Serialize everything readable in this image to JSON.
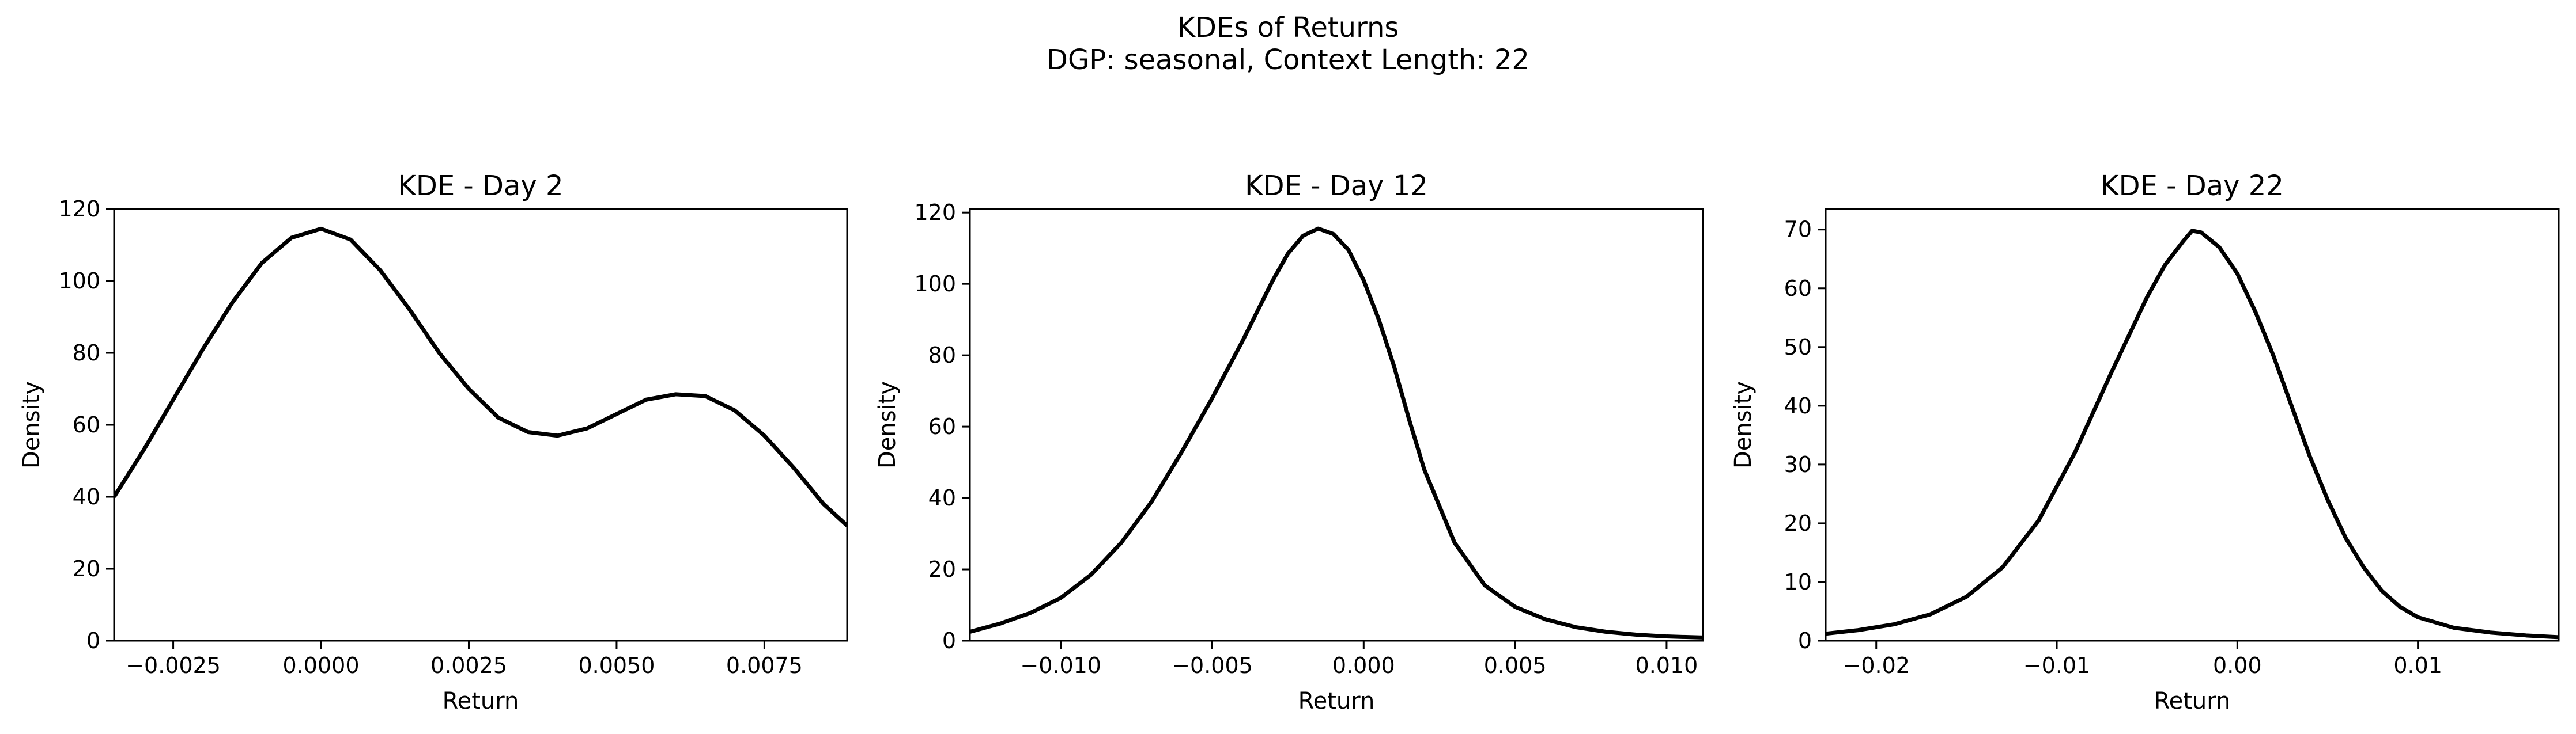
{
  "figure": {
    "title_line1": "KDEs of Returns",
    "title_line2": "DGP: seasonal, Context Length: 22"
  },
  "chart_data": [
    {
      "type": "line",
      "title": "KDE - Day 2",
      "xlabel": "Return",
      "ylabel": "Density",
      "xlim": [
        -0.0035,
        0.0089
      ],
      "ylim": [
        0,
        120
      ],
      "xticks": [
        -0.0025,
        0.0,
        0.0025,
        0.005,
        0.0075
      ],
      "xtick_labels": [
        "−0.0025",
        "0.0000",
        "0.0025",
        "0.0050",
        "0.0075"
      ],
      "yticks": [
        0,
        20,
        40,
        60,
        80,
        100,
        120
      ],
      "ytick_labels": [
        "0",
        "20",
        "40",
        "60",
        "80",
        "100",
        "120"
      ],
      "grid": false,
      "color": "#000000",
      "series": [
        {
          "x": [
            -0.0035,
            -0.003,
            -0.0025,
            -0.002,
            -0.0015,
            -0.001,
            -0.0005,
            0.0,
            0.0005,
            0.001,
            0.0015,
            0.002,
            0.0025,
            0.003,
            0.0035,
            0.004,
            0.0045,
            0.005,
            0.0055,
            0.006,
            0.0065,
            0.007,
            0.0075,
            0.008,
            0.0085,
            0.0089
          ],
          "y": [
            40,
            53,
            67,
            81,
            94,
            105,
            112,
            114.5,
            111.5,
            103,
            92,
            80,
            70,
            62,
            58,
            57,
            59,
            63,
            67,
            68.5,
            68,
            64,
            57,
            48,
            38,
            32
          ]
        }
      ]
    },
    {
      "type": "line",
      "title": "KDE - Day 12",
      "xlabel": "Return",
      "ylabel": "Density",
      "xlim": [
        -0.013,
        0.0112
      ],
      "ylim": [
        0,
        121
      ],
      "xticks": [
        -0.01,
        -0.005,
        0.0,
        0.005,
        0.01
      ],
      "xtick_labels": [
        "−0.010",
        "−0.005",
        "0.000",
        "0.005",
        "0.010"
      ],
      "yticks": [
        0,
        20,
        40,
        60,
        80,
        100,
        120
      ],
      "ytick_labels": [
        "0",
        "20",
        "40",
        "60",
        "80",
        "100",
        "120"
      ],
      "grid": false,
      "color": "#000000",
      "series": [
        {
          "x": [
            -0.013,
            -0.012,
            -0.011,
            -0.01,
            -0.009,
            -0.008,
            -0.007,
            -0.006,
            -0.005,
            -0.004,
            -0.003,
            -0.0025,
            -0.002,
            -0.0015,
            -0.001,
            -0.0005,
            0.0,
            0.0005,
            0.001,
            0.0015,
            0.002,
            0.003,
            0.004,
            0.005,
            0.006,
            0.007,
            0.008,
            0.009,
            0.01,
            0.0112
          ],
          "y": [
            2.5,
            4.8,
            7.8,
            12,
            18.5,
            27.5,
            39,
            53,
            68,
            84,
            101,
            108.5,
            113.5,
            115.5,
            114,
            109.5,
            101,
            90,
            77,
            62,
            48,
            27.5,
            15.5,
            9.5,
            6,
            3.8,
            2.5,
            1.7,
            1.2,
            0.9
          ]
        }
      ]
    },
    {
      "type": "line",
      "title": "KDE - Day 22",
      "xlabel": "Return",
      "ylabel": "Density",
      "xlim": [
        -0.0228,
        0.0178
      ],
      "ylim": [
        0,
        73.5
      ],
      "xticks": [
        -0.02,
        -0.01,
        0.0,
        0.01
      ],
      "xtick_labels": [
        "−0.02",
        "−0.01",
        "0.00",
        "0.01"
      ],
      "yticks": [
        0,
        10,
        20,
        30,
        40,
        50,
        60,
        70
      ],
      "ytick_labels": [
        "0",
        "10",
        "20",
        "30",
        "40",
        "50",
        "60",
        "70"
      ],
      "grid": false,
      "color": "#000000",
      "series": [
        {
          "x": [
            -0.0228,
            -0.021,
            -0.019,
            -0.017,
            -0.015,
            -0.013,
            -0.011,
            -0.009,
            -0.007,
            -0.005,
            -0.004,
            -0.003,
            -0.0025,
            -0.002,
            -0.001,
            0.0,
            0.001,
            0.002,
            0.003,
            0.004,
            0.005,
            0.006,
            0.007,
            0.008,
            0.009,
            0.01,
            0.012,
            0.014,
            0.016,
            0.0178
          ],
          "y": [
            1.2,
            1.8,
            2.8,
            4.5,
            7.5,
            12.5,
            20.5,
            32,
            45.5,
            58.5,
            64,
            68,
            69.8,
            69.5,
            67,
            62.5,
            56,
            48.5,
            40,
            31.5,
            24,
            17.5,
            12.5,
            8.5,
            5.8,
            4,
            2.2,
            1.4,
            0.9,
            0.6
          ]
        }
      ]
    }
  ]
}
